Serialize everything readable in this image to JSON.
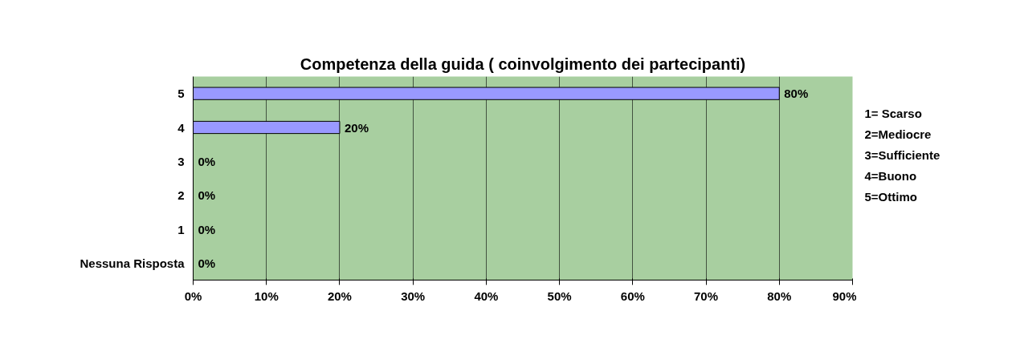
{
  "chart_data": {
    "type": "bar",
    "orientation": "horizontal",
    "title": "Competenza della guida ( coinvolgimento dei partecipanti)",
    "categories": [
      "5",
      "4",
      "3",
      "2",
      "1",
      "Nessuna Risposta"
    ],
    "values": [
      80,
      20,
      0,
      0,
      0,
      0
    ],
    "color": "#9999ff",
    "value_labels": [
      "80%",
      "20%",
      "0%",
      "0%",
      "0%",
      "0%"
    ],
    "xlim": [
      0,
      90
    ],
    "xticks": [
      {
        "value": 0,
        "label": "0%"
      },
      {
        "value": 10,
        "label": "10%"
      },
      {
        "value": 20,
        "label": "20%"
      },
      {
        "value": 30,
        "label": "30%"
      },
      {
        "value": 40,
        "label": "40%"
      },
      {
        "value": 50,
        "label": "50%"
      },
      {
        "value": 60,
        "label": "60%"
      },
      {
        "value": 70,
        "label": "70%"
      },
      {
        "value": 80,
        "label": "80%"
      },
      {
        "value": 90,
        "label": "90%"
      }
    ],
    "grid": "x",
    "annotations": [
      "1= Scarso",
      "2=Mediocre",
      "3=Sufficiente",
      "4=Buono",
      "5=Ottimo"
    ]
  }
}
